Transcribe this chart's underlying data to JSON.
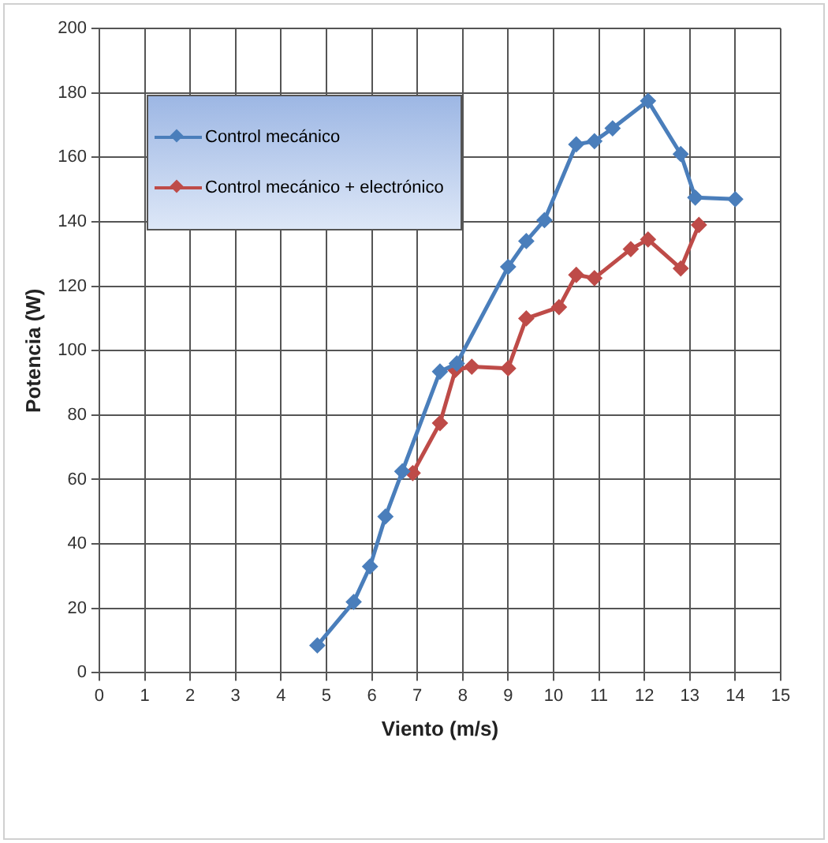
{
  "chart_data": {
    "type": "line",
    "xlabel": "Viento (m/s)",
    "ylabel": "Potencia (W)",
    "xlim": [
      0,
      15
    ],
    "xticks": [
      0,
      1,
      2,
      3,
      4,
      5,
      6,
      7,
      8,
      9,
      10,
      11,
      12,
      13,
      14,
      15
    ],
    "ylim": [
      0,
      200
    ],
    "yticks": [
      0,
      20,
      40,
      60,
      80,
      100,
      120,
      140,
      160,
      180,
      200
    ],
    "grid": true,
    "legend": "top left",
    "marker": "diamond",
    "line_style": "solid",
    "series": [
      {
        "name": "Control mecánico",
        "color": "#4a7ebb",
        "x": [
          4.8,
          5.6,
          5.96,
          6.3,
          6.67,
          7.5,
          7.87,
          9.0,
          9.4,
          9.8,
          10.5,
          10.9,
          11.3,
          12.08,
          12.8,
          13.12,
          14.0
        ],
        "values": [
          8.5,
          22,
          33,
          48.5,
          62.5,
          93.5,
          96,
          126,
          134,
          140.5,
          164,
          165,
          169,
          177.5,
          161,
          147.5,
          147
        ]
      },
      {
        "name": "Control mecánico + electrónico",
        "color": "#be4b48",
        "x": [
          6.9,
          7.5,
          7.84,
          8.2,
          9.0,
          9.4,
          10.12,
          10.5,
          10.9,
          11.7,
          12.08,
          12.8,
          13.2
        ],
        "values": [
          62,
          77.5,
          94,
          95,
          94.5,
          110,
          113.5,
          123.5,
          122.5,
          131.5,
          134.5,
          125.5,
          139
        ]
      }
    ]
  }
}
